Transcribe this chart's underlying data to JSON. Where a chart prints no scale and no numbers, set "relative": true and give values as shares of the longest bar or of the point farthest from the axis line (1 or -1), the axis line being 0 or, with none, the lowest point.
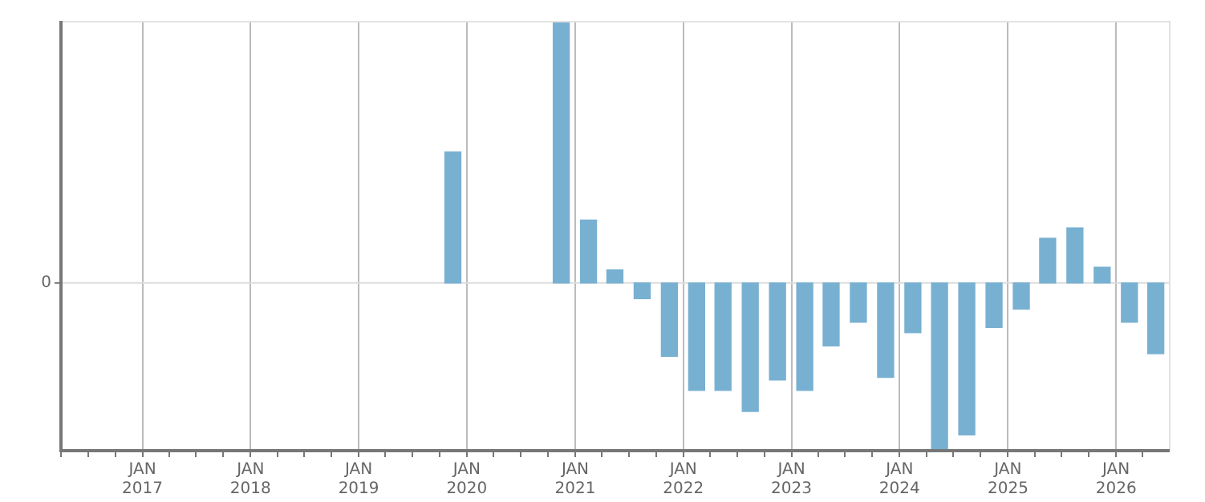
{
  "chart_data": {
    "type": "bar",
    "relative": true,
    "x": [
      "2019-11-15",
      "2020-11-15",
      "2021-02-15",
      "2021-05-15",
      "2021-08-15",
      "2021-11-15",
      "2022-02-15",
      "2022-05-15",
      "2022-08-15",
      "2022-11-15",
      "2023-02-15",
      "2023-05-15",
      "2023-08-15",
      "2023-11-15",
      "2024-02-15",
      "2024-05-15",
      "2024-08-15",
      "2024-11-15",
      "2025-02-15",
      "2025-05-15",
      "2025-08-15",
      "2025-11-15",
      "2026-02-15",
      "2026-05-15"
    ],
    "values": [
      0.5,
      1,
      0.24,
      0.05,
      -0.06,
      -0.28,
      -0.41,
      -0.41,
      -0.49,
      -0.37,
      -0.41,
      -0.24,
      -0.15,
      -0.36,
      -0.19,
      -0.64,
      -0.58,
      -0.17,
      -0.1,
      0.17,
      0.21,
      0.06,
      -0.15,
      -0.27
    ],
    "color": "#78b0d2",
    "xlim": [
      "2016-04",
      "2026-07"
    ],
    "xticks": [
      {
        "value": "2016-04",
        "label": null
      },
      {
        "value": "2016-07",
        "label": null
      },
      {
        "value": "2016-10",
        "label": null
      },
      {
        "value": "2017-01",
        "label": "JAN 2017"
      },
      {
        "value": "2017-04",
        "label": null
      },
      {
        "value": "2017-07",
        "label": null
      },
      {
        "value": "2017-10",
        "label": null
      },
      {
        "value": "2018-01",
        "label": "JAN 2018"
      },
      {
        "value": "2018-04",
        "label": null
      },
      {
        "value": "2018-07",
        "label": null
      },
      {
        "value": "2018-10",
        "label": null
      },
      {
        "value": "2019-01",
        "label": "JAN 2019"
      },
      {
        "value": "2019-04",
        "label": null
      },
      {
        "value": "2019-07",
        "label": null
      },
      {
        "value": "2019-10",
        "label": null
      },
      {
        "value": "2020-01",
        "label": "JAN 2020"
      },
      {
        "value": "2020-04",
        "label": null
      },
      {
        "value": "2020-07",
        "label": null
      },
      {
        "value": "2020-10",
        "label": null
      },
      {
        "value": "2021-01",
        "label": "JAN 2021"
      },
      {
        "value": "2021-04",
        "label": null
      },
      {
        "value": "2021-07",
        "label": null
      },
      {
        "value": "2021-10",
        "label": null
      },
      {
        "value": "2022-01",
        "label": "JAN 2022"
      },
      {
        "value": "2022-04",
        "label": null
      },
      {
        "value": "2022-07",
        "label": null
      },
      {
        "value": "2022-10",
        "label": null
      },
      {
        "value": "2023-01",
        "label": "JAN 2023"
      },
      {
        "value": "2023-04",
        "label": null
      },
      {
        "value": "2023-07",
        "label": null
      },
      {
        "value": "2023-10",
        "label": null
      },
      {
        "value": "2024-01",
        "label": "JAN 2024"
      },
      {
        "value": "2024-04",
        "label": null
      },
      {
        "value": "2024-07",
        "label": null
      },
      {
        "value": "2024-10",
        "label": null
      },
      {
        "value": "2025-01",
        "label": "JAN 2025"
      },
      {
        "value": "2025-04",
        "label": null
      },
      {
        "value": "2025-07",
        "label": null
      },
      {
        "value": "2025-10",
        "label": null
      },
      {
        "value": "2026-01",
        "label": "JAN 2026"
      },
      {
        "value": "2026-04",
        "label": null
      }
    ],
    "ref_lines": [
      {
        "axis": "y",
        "value": 0,
        "label": "0",
        "color": "#dddddd"
      }
    ],
    "grid": "x",
    "legend": false
  }
}
